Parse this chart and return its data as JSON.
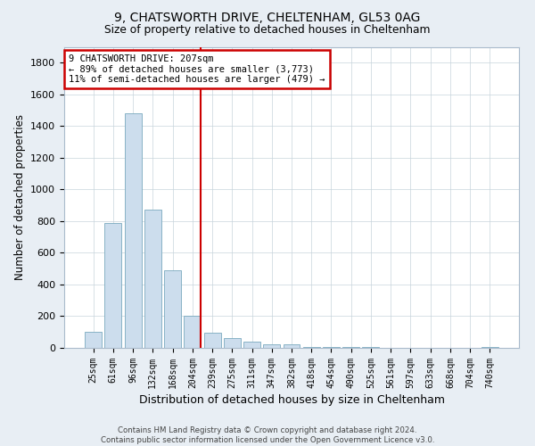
{
  "title1": "9, CHATSWORTH DRIVE, CHELTENHAM, GL53 0AG",
  "title2": "Size of property relative to detached houses in Cheltenham",
  "xlabel": "Distribution of detached houses by size in Cheltenham",
  "ylabel": "Number of detached properties",
  "bar_color": "#ccdded",
  "bar_edge_color": "#7aaabf",
  "categories": [
    "25sqm",
    "61sqm",
    "96sqm",
    "132sqm",
    "168sqm",
    "204sqm",
    "239sqm",
    "275sqm",
    "311sqm",
    "347sqm",
    "382sqm",
    "418sqm",
    "454sqm",
    "490sqm",
    "525sqm",
    "561sqm",
    "597sqm",
    "633sqm",
    "668sqm",
    "704sqm",
    "740sqm"
  ],
  "values": [
    100,
    790,
    1480,
    870,
    490,
    200,
    95,
    60,
    40,
    25,
    20,
    5,
    4,
    3,
    3,
    2,
    2,
    1,
    1,
    1,
    5
  ],
  "vline_index": 5,
  "vline_color": "#cc0000",
  "annotation_text1": "9 CHATSWORTH DRIVE: 207sqm",
  "annotation_text2": "← 89% of detached houses are smaller (3,773)",
  "annotation_text3": "11% of semi-detached houses are larger (479) →",
  "footer1": "Contains HM Land Registry data © Crown copyright and database right 2024.",
  "footer2": "Contains public sector information licensed under the Open Government Licence v3.0.",
  "ylim": [
    0,
    1900
  ],
  "yticks": [
    0,
    200,
    400,
    600,
    800,
    1000,
    1200,
    1400,
    1600,
    1800
  ],
  "bg_color": "#e8eef4",
  "plot_bg_color": "#ffffff",
  "grid_color": "#c8d4dc"
}
